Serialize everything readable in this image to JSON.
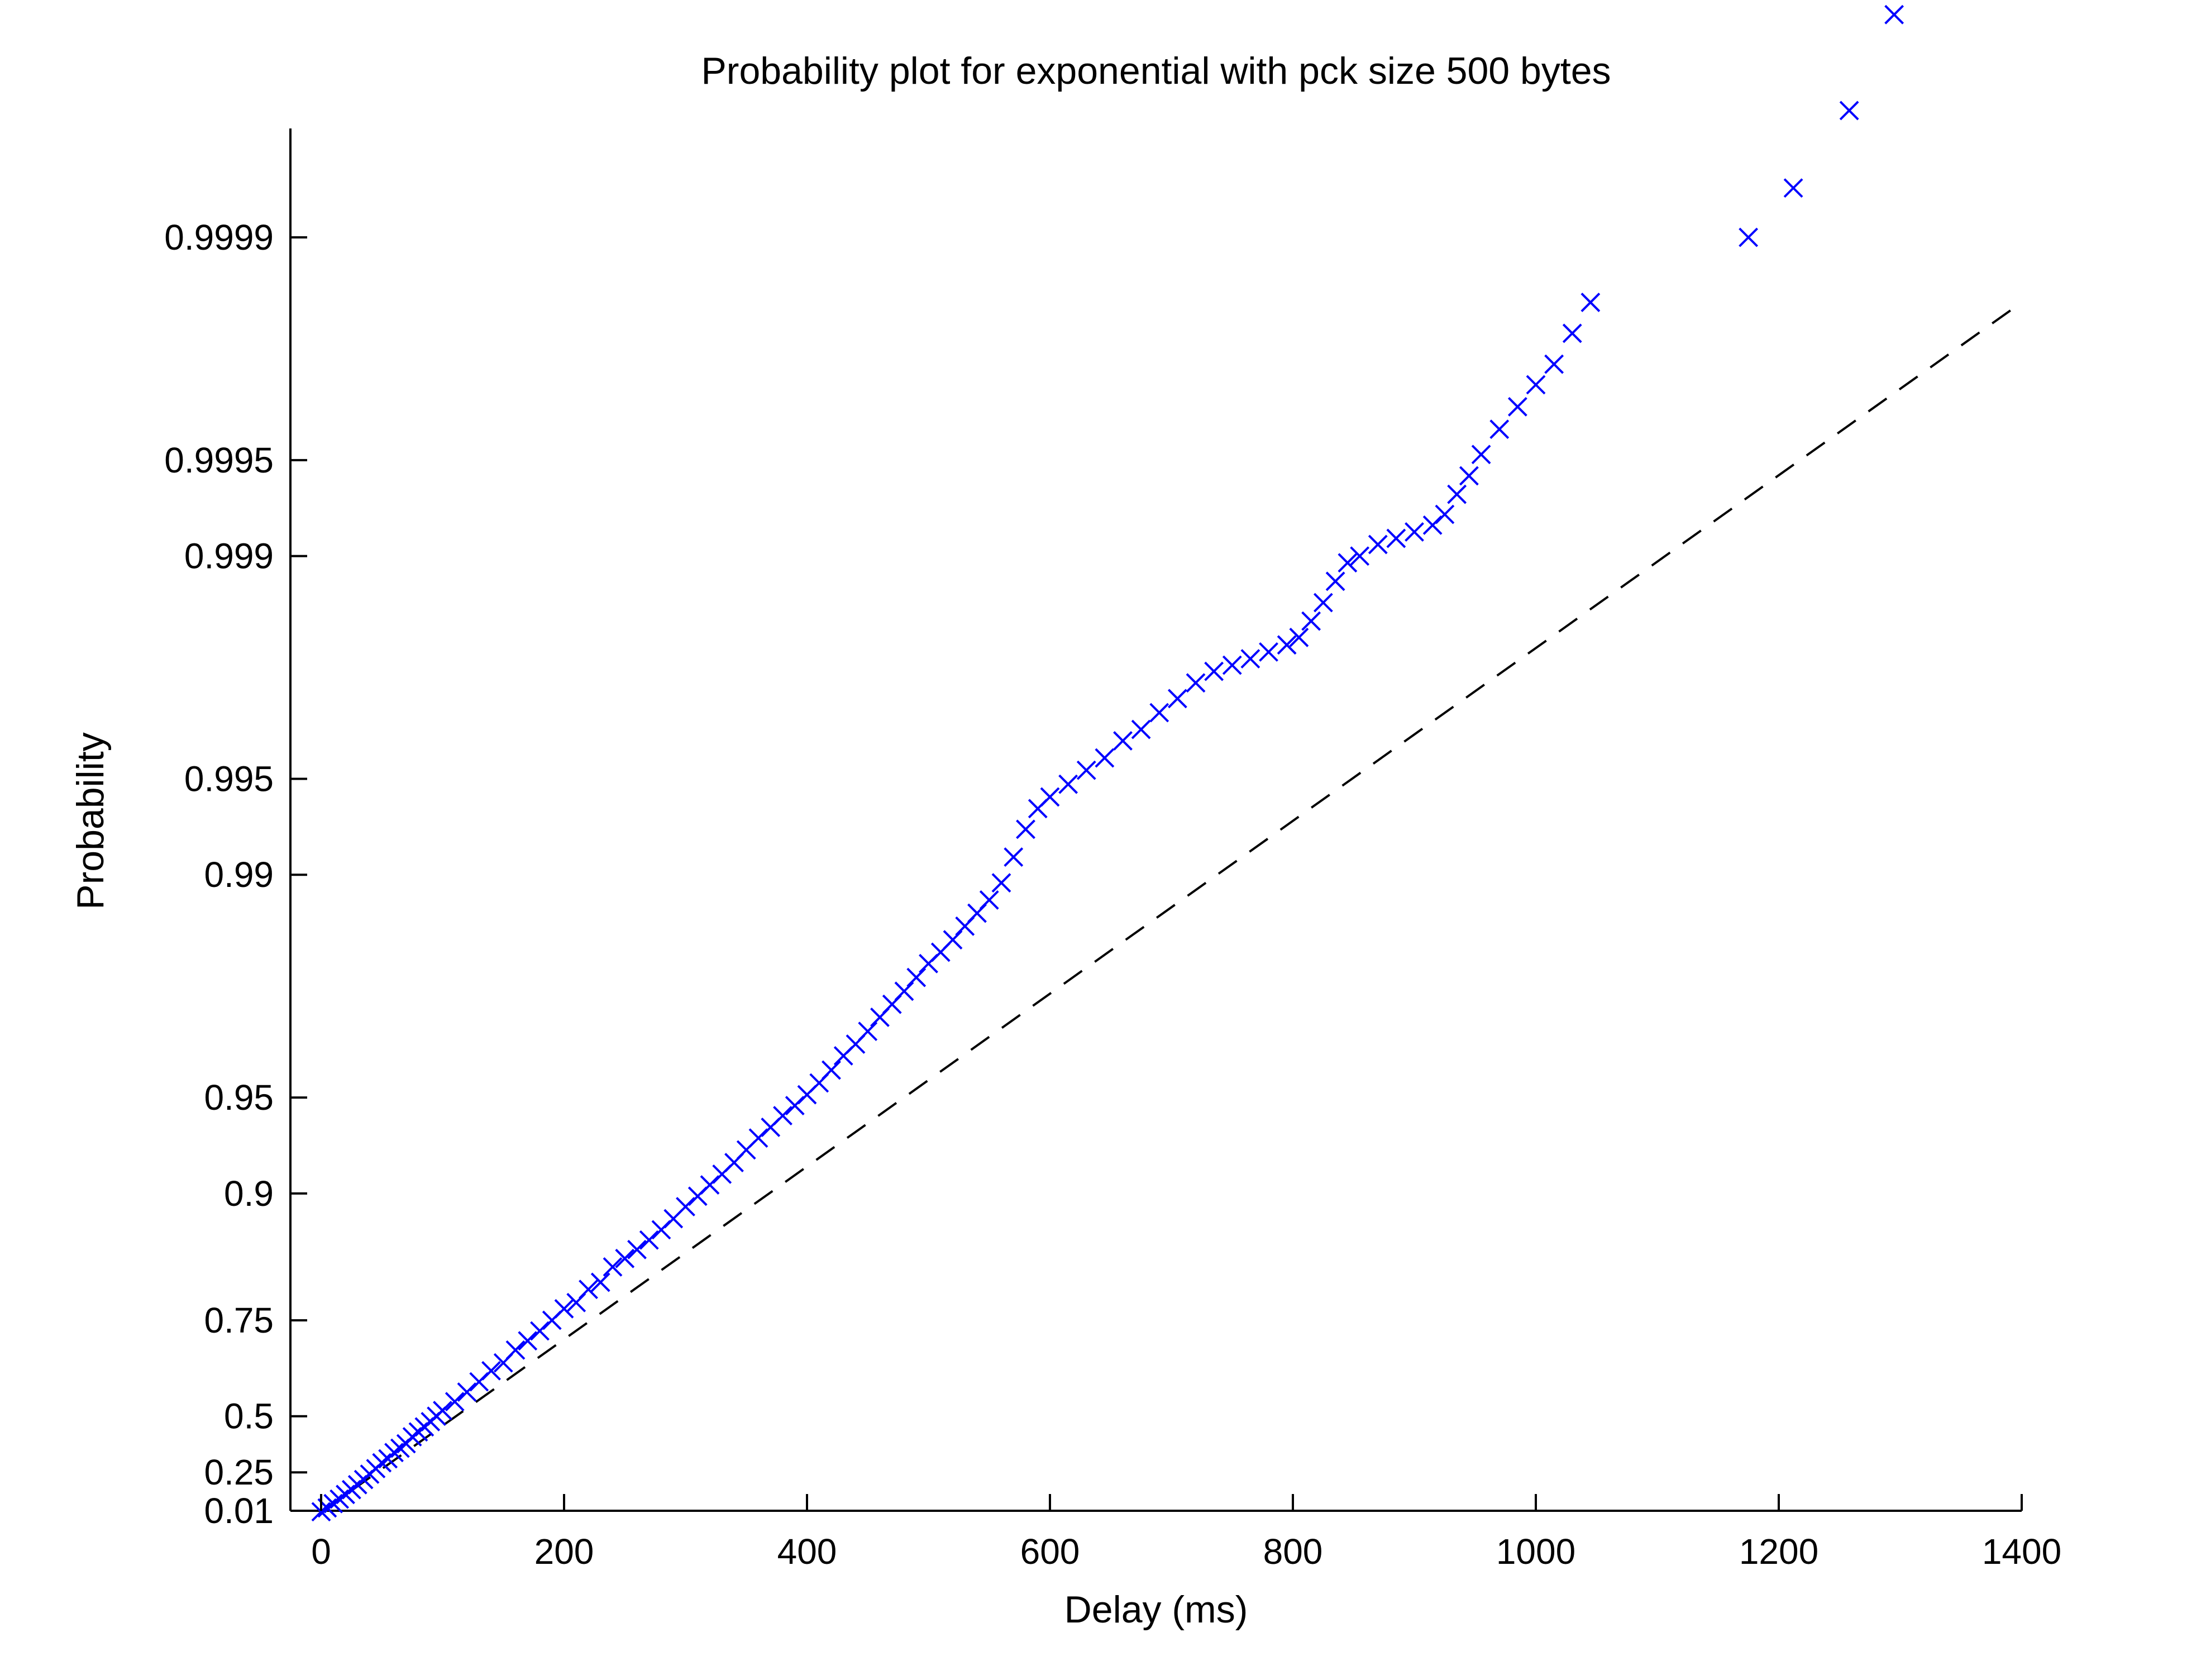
{
  "chart_data": {
    "type": "scatter",
    "title": "Probability plot for exponential with pck size 500 bytes",
    "xlabel": "Delay (ms)",
    "ylabel": "Probability",
    "xlim": [
      -15,
      1400
    ],
    "y_scale": "exponential-probability (-ln(1-p))",
    "ylim": [
      0.0,
      0.99996
    ],
    "x_ticks": [
      0,
      200,
      400,
      600,
      800,
      1000,
      1200,
      1400
    ],
    "y_ticks": [
      0.01,
      0.25,
      0.5,
      0.75,
      0.9,
      0.95,
      0.99,
      0.995,
      0.999,
      0.9995,
      0.9999
    ],
    "y_tick_labels": [
      "0.01",
      "0.25",
      "0.5",
      "0.75",
      "0.9",
      "0.95",
      "0.99",
      "0.995",
      "0.999",
      "0.9995",
      "0.9999"
    ],
    "grid": false,
    "reference_line": {
      "style": "dashed",
      "color": "#000000",
      "x": [
        0,
        1400
      ],
      "p": [
        0.0,
        0.99984
      ]
    },
    "series": [
      {
        "marker": "x",
        "color": "#0000ff",
        "points": [
          [
            0,
            0.003
          ],
          [
            5,
            0.03
          ],
          [
            10,
            0.06
          ],
          [
            15,
            0.09
          ],
          [
            20,
            0.12
          ],
          [
            25,
            0.15
          ],
          [
            30,
            0.18
          ],
          [
            35,
            0.21
          ],
          [
            40,
            0.24
          ],
          [
            45,
            0.27
          ],
          [
            50,
            0.3
          ],
          [
            55,
            0.32
          ],
          [
            60,
            0.35
          ],
          [
            65,
            0.37
          ],
          [
            70,
            0.39
          ],
          [
            75,
            0.42
          ],
          [
            80,
            0.44
          ],
          [
            85,
            0.46
          ],
          [
            90,
            0.48
          ],
          [
            95,
            0.5
          ],
          [
            100,
            0.52
          ],
          [
            110,
            0.55
          ],
          [
            120,
            0.58
          ],
          [
            130,
            0.61
          ],
          [
            140,
            0.64
          ],
          [
            150,
            0.66
          ],
          [
            160,
            0.69
          ],
          [
            170,
            0.71
          ],
          [
            180,
            0.73
          ],
          [
            190,
            0.75
          ],
          [
            200,
            0.77
          ],
          [
            210,
            0.78
          ],
          [
            220,
            0.8
          ],
          [
            230,
            0.81
          ],
          [
            240,
            0.83
          ],
          [
            250,
            0.84
          ],
          [
            260,
            0.85
          ],
          [
            270,
            0.86
          ],
          [
            280,
            0.87
          ],
          [
            290,
            0.88
          ],
          [
            300,
            0.89
          ],
          [
            310,
            0.898
          ],
          [
            320,
            0.906
          ],
          [
            330,
            0.913
          ],
          [
            340,
            0.92
          ],
          [
            350,
            0.927
          ],
          [
            360,
            0.933
          ],
          [
            370,
            0.938
          ],
          [
            380,
            0.943
          ],
          [
            390,
            0.947
          ],
          [
            400,
            0.951
          ],
          [
            410,
            0.955
          ],
          [
            420,
            0.959
          ],
          [
            430,
            0.963
          ],
          [
            440,
            0.966
          ],
          [
            450,
            0.969
          ],
          [
            460,
            0.972
          ],
          [
            470,
            0.9745
          ],
          [
            480,
            0.9768
          ],
          [
            490,
            0.979
          ],
          [
            500,
            0.981
          ],
          [
            510,
            0.9825
          ],
          [
            520,
            0.984
          ],
          [
            530,
            0.9855
          ],
          [
            540,
            0.9868
          ],
          [
            550,
            0.988
          ],
          [
            560,
            0.9894
          ],
          [
            570,
            0.9912
          ],
          [
            580,
            0.9928
          ],
          [
            590,
            0.9938
          ],
          [
            600,
            0.9943
          ],
          [
            615,
            0.9948
          ],
          [
            630,
            0.9953
          ],
          [
            645,
            0.9957
          ],
          [
            660,
            0.9962
          ],
          [
            675,
            0.9965
          ],
          [
            690,
            0.9969
          ],
          [
            705,
            0.9972
          ],
          [
            720,
            0.9975
          ],
          [
            735,
            0.9977
          ],
          [
            750,
            0.9978
          ],
          [
            765,
            0.9979
          ],
          [
            780,
            0.998
          ],
          [
            795,
            0.9981
          ],
          [
            805,
            0.9982
          ],
          [
            815,
            0.9984
          ],
          [
            825,
            0.9986
          ],
          [
            835,
            0.9988
          ],
          [
            845,
            0.99895
          ],
          [
            855,
            0.999
          ],
          [
            870,
            0.99908
          ],
          [
            885,
            0.99912
          ],
          [
            900,
            0.99916
          ],
          [
            915,
            0.9992
          ],
          [
            925,
            0.99926
          ],
          [
            935,
            0.99936
          ],
          [
            945,
            0.99944
          ],
          [
            955,
            0.99952
          ],
          [
            970,
            0.9996
          ],
          [
            985,
            0.99966
          ],
          [
            1000,
            0.99971
          ],
          [
            1015,
            0.99975
          ],
          [
            1030,
            0.9998
          ],
          [
            1045,
            0.99984
          ],
          [
            1175,
            0.9999
          ],
          [
            1212,
            0.99993
          ],
          [
            1258,
            0.99996
          ],
          [
            1295,
            0.99998
          ]
        ]
      }
    ]
  }
}
